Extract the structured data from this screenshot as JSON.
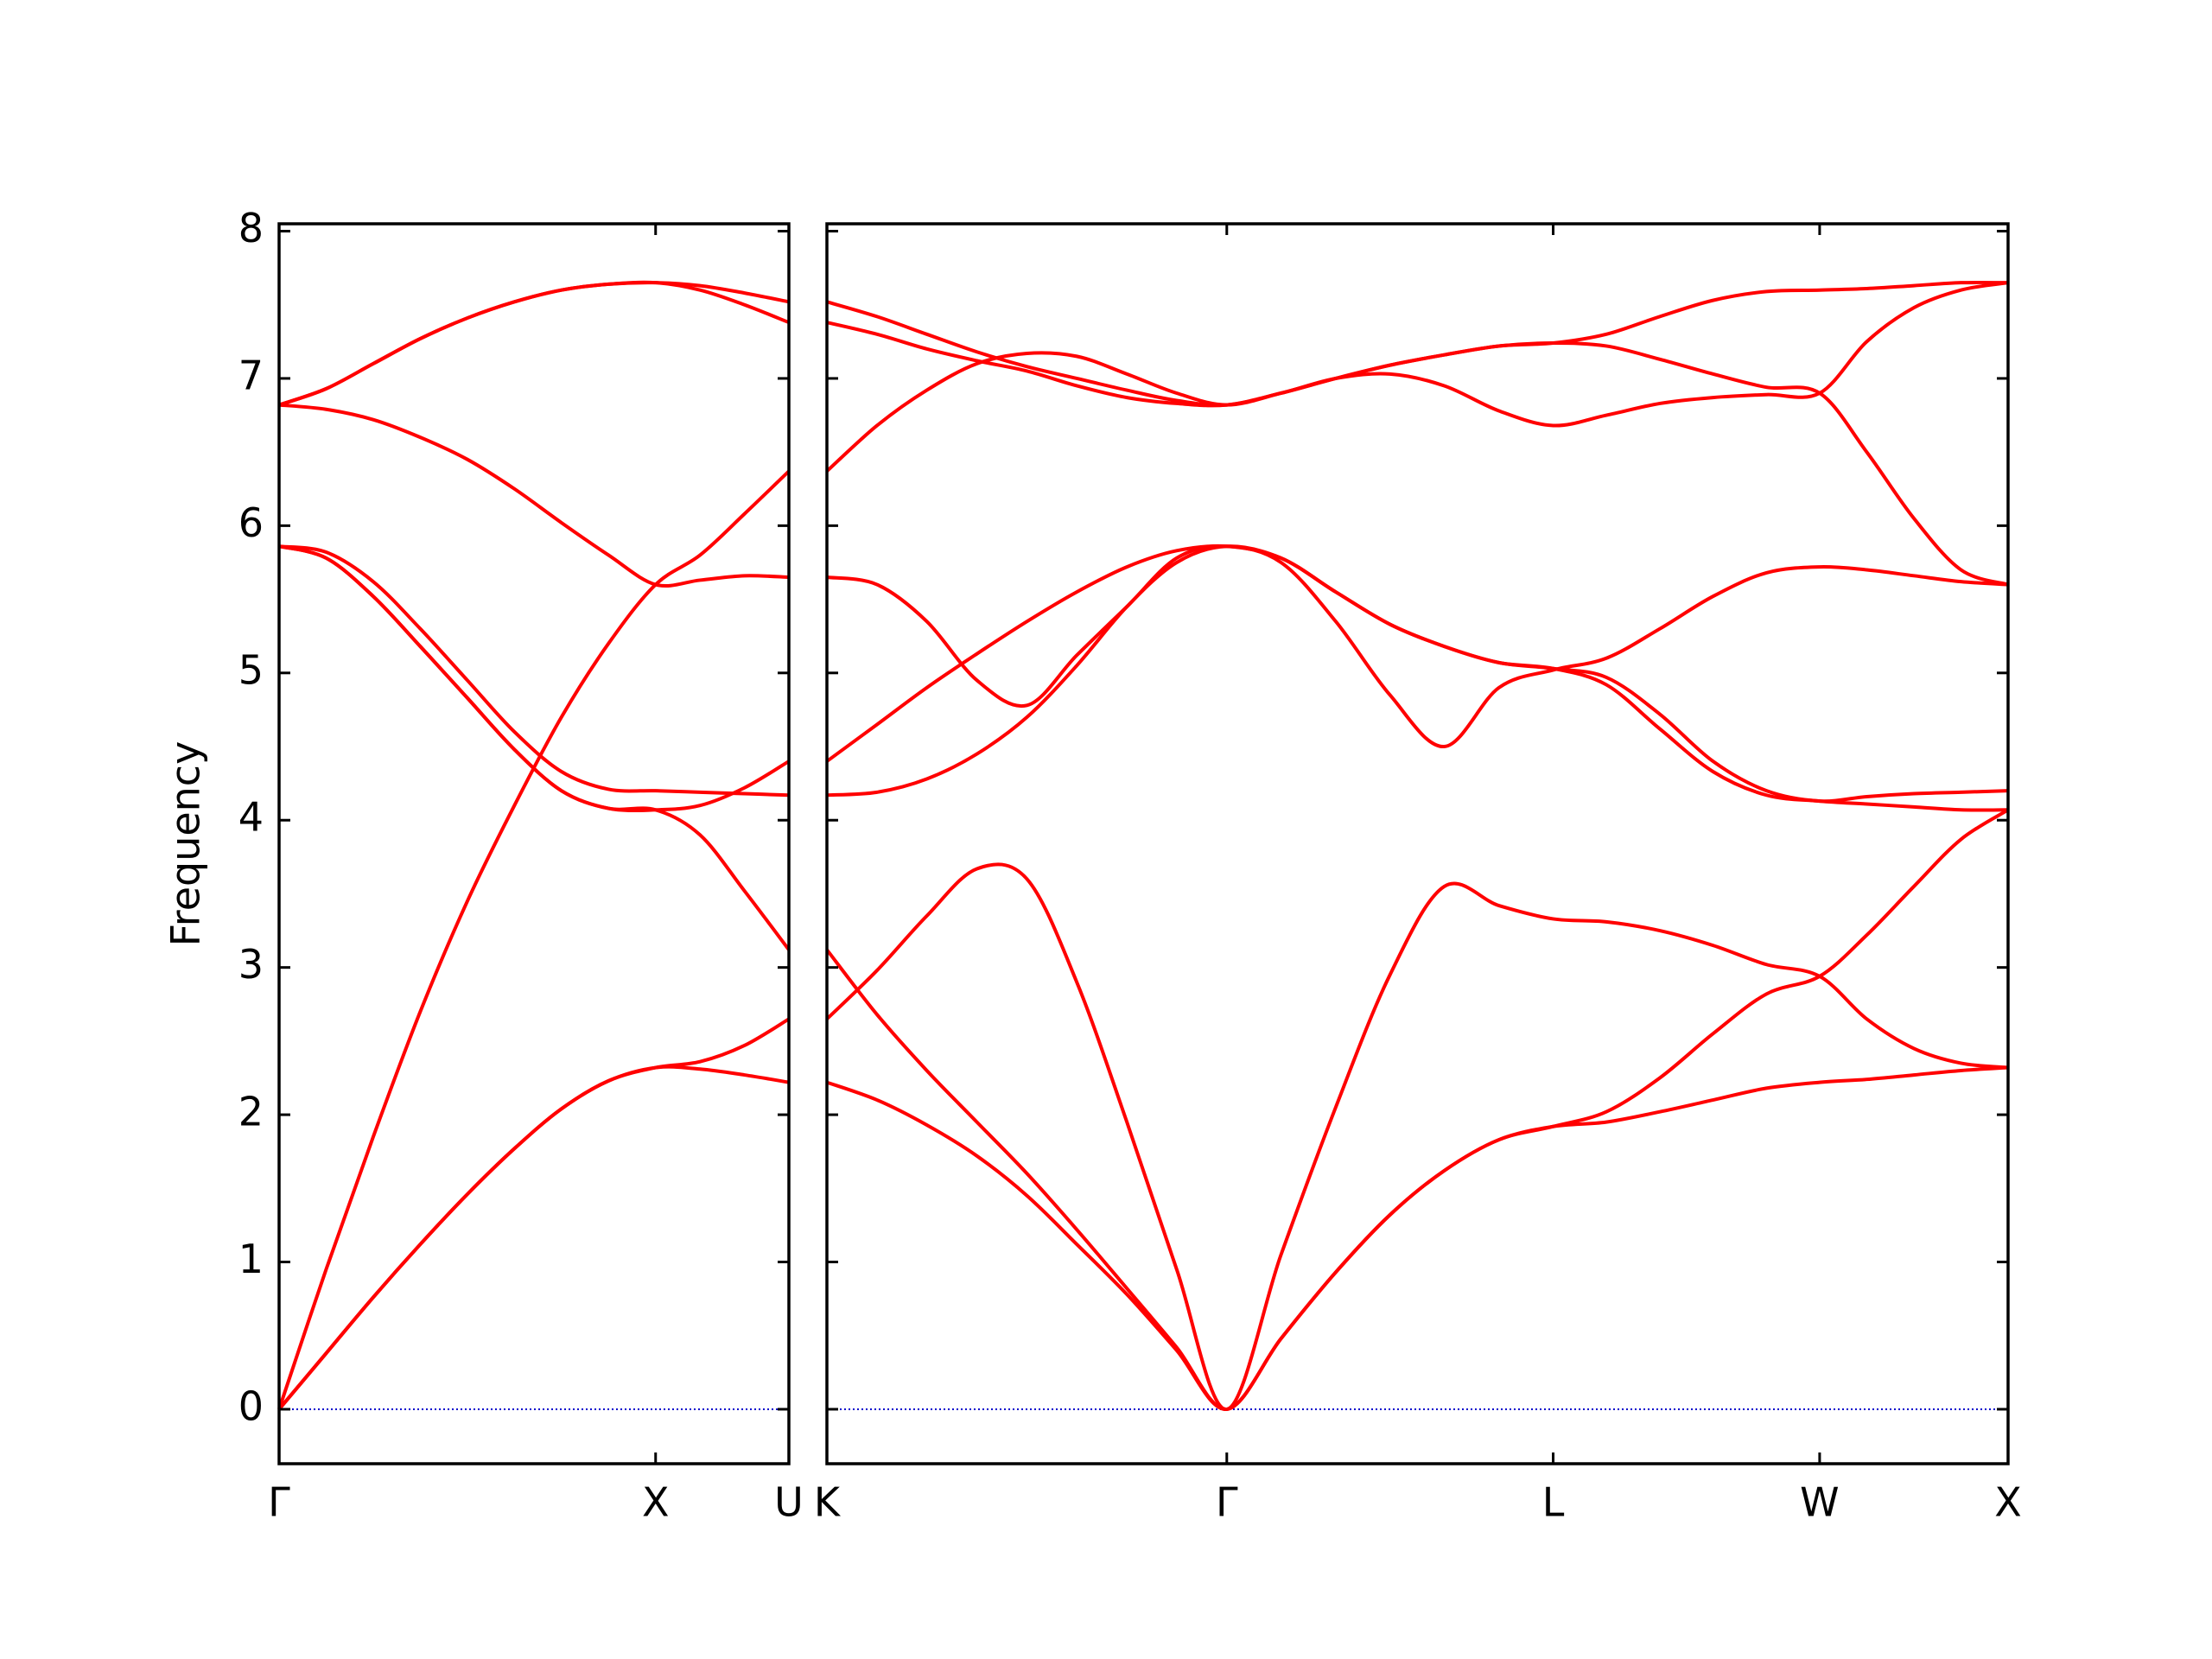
{
  "chart_data": [
    {
      "type": "line",
      "y_label": "Frequency",
      "color": "#ff0000",
      "xlim": [
        0,
        1.354
      ],
      "xticks": [
        {
          "value": 0,
          "label": "Γ"
        },
        {
          "value": 1,
          "label": "X"
        },
        {
          "value": 1.354,
          "label": "U"
        }
      ],
      "ylim": [
        -0.37,
        8.05
      ],
      "yticks": [
        0,
        1,
        2,
        3,
        4,
        5,
        6,
        7,
        8
      ],
      "hline": {
        "y": 0,
        "color": "#0000cc"
      },
      "x": [
        0,
        0.125,
        0.25,
        0.375,
        0.5,
        0.625,
        0.75,
        0.875,
        1,
        1.118,
        1.236,
        1.354
      ],
      "series": [
        {
          "values": [
            0,
            0.38,
            0.76,
            1.12,
            1.46,
            1.77,
            2.04,
            2.23,
            2.32,
            2.31,
            2.27,
            2.22
          ]
        },
        {
          "values": [
            0,
            0.38,
            0.76,
            1.12,
            1.46,
            1.77,
            2.04,
            2.23,
            2.32,
            2.36,
            2.47,
            2.65
          ]
        },
        {
          "values": [
            5.86,
            5.78,
            5.52,
            5.18,
            4.83,
            4.48,
            4.2,
            4.08,
            4.07,
            3.9,
            3.52,
            3.12
          ]
        },
        {
          "values": [
            5.86,
            5.78,
            5.52,
            5.18,
            4.83,
            4.48,
            4.2,
            4.08,
            4.07,
            4.1,
            4.22,
            4.4
          ]
        },
        {
          "values": [
            5.86,
            5.82,
            5.62,
            5.3,
            4.95,
            4.6,
            4.33,
            4.21,
            4.2,
            4.19,
            4.18,
            4.17
          ]
        },
        {
          "values": [
            0,
            0.95,
            1.85,
            2.7,
            3.45,
            4.1,
            4.7,
            5.2,
            5.6,
            5.8,
            6.08,
            6.37
          ]
        },
        {
          "values": [
            6.82,
            6.79,
            6.72,
            6.6,
            6.45,
            6.25,
            6.02,
            5.8,
            5.6,
            5.63,
            5.66,
            5.65
          ]
        },
        {
          "values": [
            6.82,
            6.93,
            7.1,
            7.27,
            7.41,
            7.52,
            7.6,
            7.64,
            7.65,
            7.6,
            7.5,
            7.38
          ]
        },
        {
          "values": [
            6.82,
            6.93,
            7.1,
            7.27,
            7.41,
            7.52,
            7.6,
            7.64,
            7.65,
            7.63,
            7.58,
            7.52
          ]
        }
      ]
    },
    {
      "type": "line",
      "color": "#ff0000",
      "xlim": [
        1.354,
        4.488
      ],
      "xticks": [
        {
          "value": 1.354,
          "label": "K"
        },
        {
          "value": 2.415,
          "label": "Γ"
        },
        {
          "value": 3.281,
          "label": "L"
        },
        {
          "value": 3.988,
          "label": "W"
        },
        {
          "value": 4.488,
          "label": "X"
        }
      ],
      "ylim": [
        -0.37,
        8.05
      ],
      "yticks": [
        0,
        1,
        2,
        3,
        4,
        5,
        6,
        7,
        8
      ],
      "hline": {
        "y": 0,
        "color": "#0000cc"
      },
      "x": [
        1.354,
        1.487,
        1.619,
        1.752,
        1.885,
        2.017,
        2.15,
        2.282,
        2.415,
        2.559,
        2.704,
        2.848,
        2.992,
        3.137,
        3.281,
        3.422,
        3.564,
        3.705,
        3.847,
        3.988,
        4.113,
        4.238,
        4.363,
        4.488
      ],
      "series": [
        {
          "values": [
            2.22,
            2.1,
            1.93,
            1.72,
            1.45,
            1.12,
            0.78,
            0.4,
            0,
            0.48,
            0.93,
            1.32,
            1.62,
            1.83,
            1.92,
            1.95,
            2.02,
            2.1,
            2.18,
            2.22,
            2.24,
            2.27,
            2.3,
            2.32
          ]
        },
        {
          "values": [
            3.12,
            2.68,
            2.3,
            1.95,
            1.6,
            1.22,
            0.82,
            0.42,
            0,
            0.48,
            0.93,
            1.32,
            1.62,
            1.83,
            1.92,
            2.02,
            2.25,
            2.55,
            2.82,
            2.94,
            3.22,
            3.55,
            3.87,
            4.07
          ]
        },
        {
          "values": [
            2.65,
            2.98,
            3.35,
            3.67,
            3.6,
            2.9,
            1.95,
            0.95,
            0,
            1.05,
            2.05,
            2.95,
            3.55,
            3.42,
            3.33,
            3.31,
            3.25,
            3.15,
            3.02,
            2.94,
            2.65,
            2.45,
            2.35,
            2.32
          ]
        },
        {
          "values": [
            4.17,
            4.19,
            4.28,
            4.45,
            4.7,
            5.05,
            5.45,
            5.75,
            5.86,
            5.78,
            5.55,
            5.33,
            5.18,
            5.07,
            5.03,
            4.92,
            4.62,
            4.33,
            4.17,
            4.13,
            4.11,
            4.09,
            4.07,
            4.07
          ]
        },
        {
          "values": [
            4.4,
            4.65,
            4.9,
            5.13,
            5.35,
            5.55,
            5.72,
            5.83,
            5.86,
            5.78,
            5.55,
            5.33,
            5.18,
            5.07,
            5.03,
            4.97,
            4.72,
            4.4,
            4.2,
            4.13,
            4.16,
            4.18,
            4.19,
            4.2
          ]
        },
        {
          "values": [
            5.65,
            5.6,
            5.35,
            4.95,
            4.78,
            5.12,
            5.45,
            5.78,
            5.86,
            5.75,
            5.35,
            4.85,
            4.5,
            4.9,
            5.02,
            5.1,
            5.3,
            5.52,
            5.68,
            5.72,
            5.7,
            5.66,
            5.62,
            5.6
          ]
        },
        {
          "values": [
            6.37,
            6.68,
            6.92,
            7.1,
            7.17,
            7.15,
            7.03,
            6.9,
            6.82,
            6.9,
            7.0,
            7.03,
            6.95,
            6.78,
            6.68,
            6.75,
            6.83,
            6.87,
            6.89,
            6.9,
            7.25,
            7.48,
            7.6,
            7.65
          ]
        },
        {
          "values": [
            7.52,
            7.42,
            7.3,
            7.18,
            7.08,
            7.0,
            6.92,
            6.85,
            6.82,
            6.9,
            7.0,
            7.09,
            7.16,
            7.22,
            7.24,
            7.22,
            7.13,
            7.03,
            6.94,
            6.9,
            6.5,
            6.05,
            5.7,
            5.6
          ]
        },
        {
          "values": [
            7.38,
            7.3,
            7.2,
            7.12,
            7.05,
            6.95,
            6.87,
            6.83,
            6.82,
            6.9,
            7.0,
            7.09,
            7.16,
            7.22,
            7.24,
            7.3,
            7.42,
            7.53,
            7.59,
            7.6,
            7.61,
            7.63,
            7.65,
            7.65
          ]
        }
      ]
    }
  ]
}
